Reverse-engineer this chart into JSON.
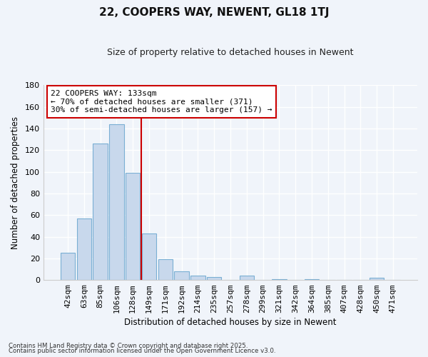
{
  "title": "22, COOPERS WAY, NEWENT, GL18 1TJ",
  "subtitle": "Size of property relative to detached houses in Newent",
  "xlabel": "Distribution of detached houses by size in Newent",
  "ylabel": "Number of detached properties",
  "bar_labels": [
    "42sqm",
    "63sqm",
    "85sqm",
    "106sqm",
    "128sqm",
    "149sqm",
    "171sqm",
    "192sqm",
    "214sqm",
    "235sqm",
    "257sqm",
    "278sqm",
    "299sqm",
    "321sqm",
    "342sqm",
    "364sqm",
    "385sqm",
    "407sqm",
    "428sqm",
    "450sqm",
    "471sqm"
  ],
  "bar_values": [
    25,
    57,
    126,
    144,
    99,
    43,
    19,
    8,
    4,
    3,
    0,
    4,
    0,
    1,
    0,
    1,
    0,
    0,
    0,
    2,
    0
  ],
  "bar_color": "#c8d8ec",
  "bar_edge_color": "#7aafd4",
  "vline_color": "#cc0000",
  "ylim": [
    0,
    180
  ],
  "yticks": [
    0,
    20,
    40,
    60,
    80,
    100,
    120,
    140,
    160,
    180
  ],
  "annotation_title": "22 COOPERS WAY: 133sqm",
  "annotation_line1": "← 70% of detached houses are smaller (371)",
  "annotation_line2": "30% of semi-detached houses are larger (157) →",
  "annotation_box_color": "#ffffff",
  "annotation_box_edge": "#cc0000",
  "footnote1": "Contains HM Land Registry data © Crown copyright and database right 2025.",
  "footnote2": "Contains public sector information licensed under the Open Government Licence v3.0.",
  "background_color": "#f0f4fa",
  "grid_color": "#ffffff"
}
